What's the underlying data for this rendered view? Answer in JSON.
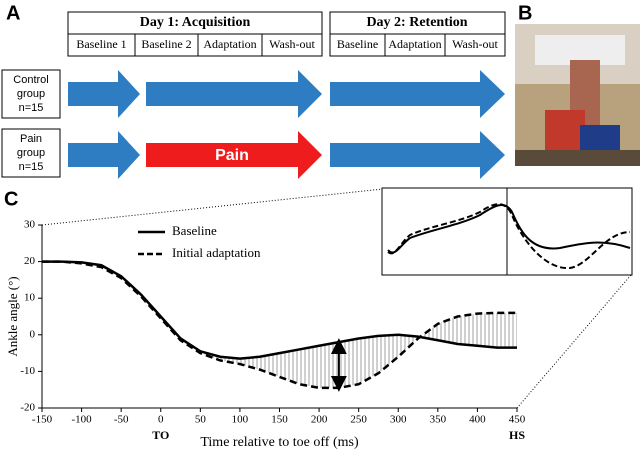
{
  "panels": {
    "a": "A",
    "b": "B",
    "c": "C"
  },
  "day1": {
    "title": "Day 1: Acquisition",
    "phases": [
      "Baseline 1",
      "Baseline 2",
      "Adaptation",
      "Wash-out"
    ]
  },
  "day2": {
    "title": "Day 2: Retention",
    "phases": [
      "Baseline",
      "Adaptation",
      "Wash-out"
    ]
  },
  "groups": [
    {
      "lines": [
        "Control",
        "group",
        "n=15"
      ]
    },
    {
      "lines": [
        "Pain",
        "group",
        "n=15"
      ]
    }
  ],
  "pain_label": "Pain",
  "chart_data": {
    "type": "line",
    "x_label": "Time relative to toe off (ms)",
    "y_label": "Ankle angle (°)",
    "x_annotations": [
      {
        "x": 0,
        "label": "TO"
      },
      {
        "x": 450,
        "label": "HS"
      }
    ],
    "x": [
      -150,
      -125,
      -100,
      -75,
      -50,
      -25,
      0,
      25,
      50,
      75,
      100,
      125,
      150,
      175,
      200,
      225,
      250,
      275,
      300,
      325,
      350,
      375,
      400,
      425,
      450
    ],
    "series": [
      {
        "name": "Baseline",
        "color": "#000000",
        "dash": false,
        "values": [
          20,
          20,
          19.8,
          19,
          16,
          11,
          5,
          -1,
          -4.5,
          -6,
          -6.5,
          -6,
          -5,
          -4,
          -3,
          -2,
          -1,
          -0.3,
          0,
          -0.5,
          -1.5,
          -2.5,
          -3,
          -3.5,
          -3.5
        ]
      },
      {
        "name": "Initial adaptation",
        "color": "#000000",
        "dash": true,
        "values": [
          20,
          20,
          19.5,
          18.5,
          15.5,
          10.5,
          4.5,
          -1.5,
          -5,
          -7,
          -8,
          -9.5,
          -11.5,
          -13.5,
          -14.5,
          -14.5,
          -13.5,
          -10.5,
          -6,
          -1,
          3,
          5,
          5.8,
          6,
          6
        ]
      }
    ],
    "xlim": [
      -150,
      450
    ],
    "xticks": [
      -150,
      -100,
      -50,
      0,
      50,
      100,
      150,
      200,
      250,
      300,
      350,
      400,
      450
    ],
    "ylim": [
      -20,
      30
    ],
    "yticks": [
      -20,
      -10,
      0,
      10,
      20,
      30
    ]
  }
}
